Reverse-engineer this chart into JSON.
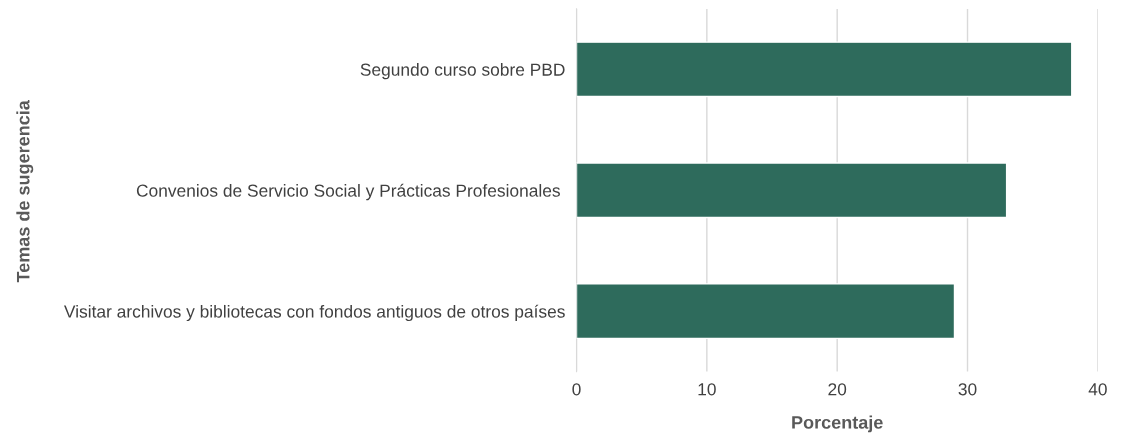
{
  "chart_data": {
    "type": "bar",
    "orientation": "horizontal",
    "categories": [
      "Segundo curso sobre PBD",
      "Convenios de Servicio Social y Prácticas Profesionales ",
      "Visitar archivos y bibliotecas con fondos antiguos de otros países"
    ],
    "values": [
      38,
      33,
      29
    ],
    "color": "#2e6b5c",
    "xlabel": "Porcentaje",
    "ylabel": "Temas de sugerencia",
    "xlim": [
      0,
      40
    ],
    "xticks": [
      0,
      10,
      20,
      30,
      40
    ],
    "grid": "x",
    "legend": false
  }
}
